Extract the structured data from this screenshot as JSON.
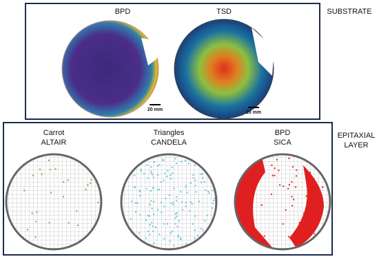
{
  "substrate": {
    "label": "SUBSTRATE",
    "maps": [
      {
        "title": "BPD",
        "scale_bar": "20 mm"
      },
      {
        "title": "TSD",
        "scale_bar": "20 mm"
      }
    ]
  },
  "epitaxial": {
    "label": [
      "EPITAXIAL",
      "LAYER"
    ],
    "maps": [
      {
        "defect": "Carrot",
        "tool": "ALTAIR"
      },
      {
        "defect": "Triangles",
        "tool": "CANDELA"
      },
      {
        "defect": "BPD",
        "tool": "SICA"
      }
    ]
  }
}
